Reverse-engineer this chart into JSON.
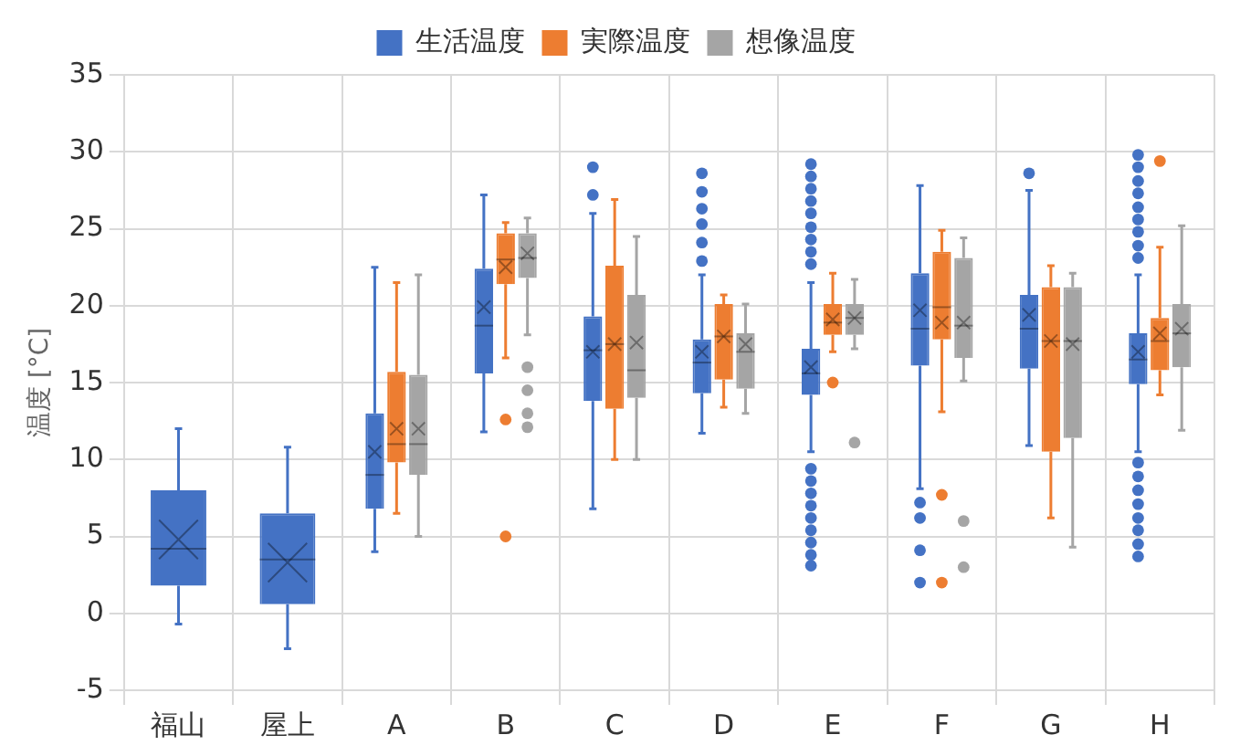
{
  "chart_data": {
    "type": "box",
    "ylabel": "温度 [°C]",
    "categories": [
      "福山",
      "屋上",
      "A",
      "B",
      "C",
      "D",
      "E",
      "F",
      "G",
      "H"
    ],
    "ylim": [
      -5,
      35
    ],
    "yticks": [
      -5,
      0,
      5,
      10,
      15,
      20,
      25,
      30,
      35
    ],
    "grid": true,
    "legend": "top",
    "series": [
      {
        "name": "生活温度",
        "color": "#4472c4",
        "boxes": [
          {
            "low": -0.7,
            "q1": 1.8,
            "median": 4.2,
            "q3": 8,
            "high": 12,
            "mean": 4.8
          },
          {
            "low": -2.3,
            "q1": 0.6,
            "median": 3.5,
            "q3": 6.5,
            "high": 10.8,
            "mean": 3.3
          },
          {
            "low": 4,
            "q1": 6.8,
            "median": 9,
            "q3": 13,
            "high": 22.5,
            "mean": 10.5
          },
          {
            "low": 11.8,
            "q1": 15.6,
            "median": 18.7,
            "q3": 22.4,
            "high": 27.2,
            "mean": 19.9
          },
          {
            "low": 6.8,
            "q1": 13.8,
            "median": 17.1,
            "q3": 19.3,
            "high": 26,
            "mean": 17,
            "outliers": [
              29,
              27.2
            ]
          },
          {
            "low": 11.7,
            "q1": 14.3,
            "median": 16.3,
            "q3": 17.8,
            "high": 22,
            "mean": 17,
            "outliers": [
              28.6,
              27.4,
              26.3,
              25.3,
              24.1,
              22.9
            ]
          },
          {
            "low": 10.5,
            "q1": 14.2,
            "median": 15.6,
            "q3": 17.2,
            "high": 21.5,
            "mean": 16,
            "outliers": [
              29.2,
              28.4,
              27.6,
              26.8,
              26,
              25.1,
              24.3,
              23.5,
              22.7,
              9.4,
              8.6,
              7.8,
              7,
              6.2,
              5.4,
              4.6,
              3.8,
              3.1
            ]
          },
          {
            "low": 8.1,
            "q1": 16.1,
            "median": 18.5,
            "q3": 22.1,
            "high": 27.8,
            "mean": 19.7,
            "outliers": [
              7.2,
              6.2,
              4.1,
              2
            ]
          },
          {
            "low": 10.9,
            "q1": 15.9,
            "median": 18.5,
            "q3": 20.7,
            "high": 27.5,
            "mean": 19.4,
            "outliers": [
              28.6
            ]
          },
          {
            "low": 10.5,
            "q1": 14.9,
            "median": 16.5,
            "q3": 18.2,
            "high": 22,
            "mean": 17,
            "outliers": [
              29.8,
              29,
              28.1,
              27.3,
              26.4,
              25.6,
              24.8,
              23.9,
              23.1,
              9.8,
              8.9,
              8,
              7.1,
              6.2,
              5.4,
              4.5,
              3.7
            ]
          }
        ]
      },
      {
        "name": "実際温度",
        "color": "#ed7d31",
        "boxes": [
          null,
          null,
          {
            "low": 6.5,
            "q1": 9.8,
            "median": 11,
            "q3": 15.7,
            "high": 21.5,
            "mean": 12
          },
          {
            "low": 16.6,
            "q1": 21.4,
            "median": 23,
            "q3": 24.7,
            "high": 25.4,
            "mean": 22.5,
            "outliers": [
              12.6,
              5
            ]
          },
          {
            "low": 10,
            "q1": 13.3,
            "median": 17.5,
            "q3": 22.6,
            "high": 26.9,
            "mean": 17.5
          },
          {
            "low": 13.4,
            "q1": 15.2,
            "median": 18,
            "q3": 20.1,
            "high": 20.7,
            "mean": 18
          },
          {
            "low": 17,
            "q1": 18.1,
            "median": 18.9,
            "q3": 20.1,
            "high": 22.1,
            "mean": 19.1,
            "outliers": [
              15
            ]
          },
          {
            "low": 13.1,
            "q1": 17.8,
            "median": 19.9,
            "q3": 23.5,
            "high": 24.9,
            "mean": 18.9,
            "outliers": [
              7.7,
              2
            ]
          },
          {
            "low": 6.2,
            "q1": 10.5,
            "median": 17.7,
            "q3": 21.2,
            "high": 22.6,
            "mean": 17.7
          },
          {
            "low": 14.2,
            "q1": 15.8,
            "median": 17.7,
            "q3": 19.2,
            "high": 23.8,
            "mean": 18.2,
            "outliers": [
              29.4
            ]
          }
        ]
      },
      {
        "name": "想像温度",
        "color": "#a5a5a5",
        "boxes": [
          null,
          null,
          {
            "low": 5,
            "q1": 9,
            "median": 11,
            "q3": 15.5,
            "high": 22,
            "mean": 12
          },
          {
            "low": 18.1,
            "q1": 21.8,
            "median": 23.1,
            "q3": 24.7,
            "high": 25.7,
            "mean": 23.4,
            "outliers": [
              16,
              14.5,
              13,
              12.1
            ]
          },
          {
            "low": 10,
            "q1": 14,
            "median": 15.8,
            "q3": 20.7,
            "high": 24.5,
            "mean": 17.6
          },
          {
            "low": 13,
            "q1": 14.6,
            "median": 17,
            "q3": 18.2,
            "high": 20.1,
            "mean": 17.5
          },
          {
            "low": 17.2,
            "q1": 18.1,
            "median": 19.2,
            "q3": 20.1,
            "high": 21.7,
            "mean": 19.2,
            "outliers": [
              11.1
            ]
          },
          {
            "low": 15.1,
            "q1": 16.6,
            "median": 18.7,
            "q3": 23.1,
            "high": 24.4,
            "mean": 18.9,
            "outliers": [
              6,
              3
            ]
          },
          {
            "low": 4.3,
            "q1": 11.4,
            "median": 17.7,
            "q3": 21.2,
            "high": 22.1,
            "mean": 17.5
          },
          {
            "low": 11.9,
            "q1": 16,
            "median": 18.2,
            "q3": 20.1,
            "high": 25.2,
            "mean": 18.5
          }
        ]
      }
    ]
  }
}
